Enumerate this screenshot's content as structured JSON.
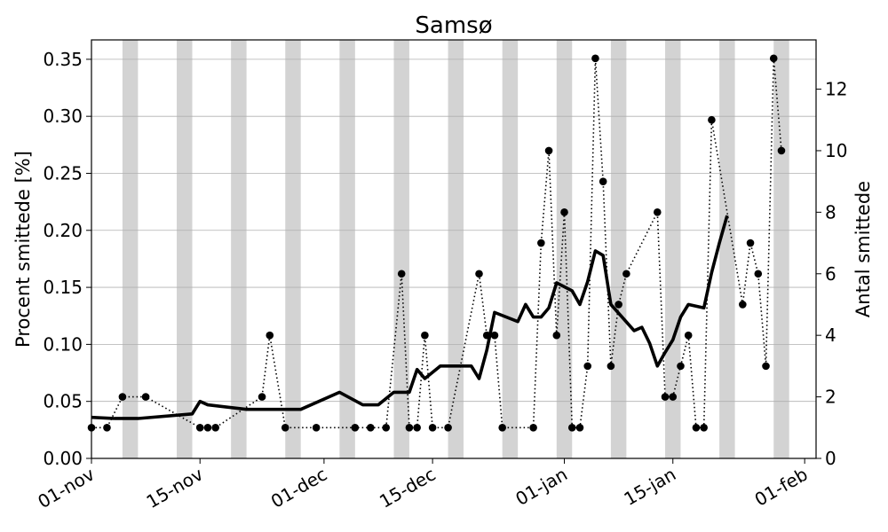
{
  "chart_data": {
    "type": "line",
    "title": "Samsø",
    "ylabel": "Procent smittede [%]",
    "y2label": "Antal smittede",
    "x_ticks": [
      "01-nov",
      "15-nov",
      "01-dec",
      "15-dec",
      "01-jan",
      "15-jan",
      "01-feb"
    ],
    "y_ticks": [
      "0.00",
      "0.05",
      "0.10",
      "0.15",
      "0.20",
      "0.25",
      "0.30",
      "0.35"
    ],
    "y2_ticks": [
      "0",
      "2",
      "4",
      "6",
      "8",
      "10",
      "12"
    ],
    "ylim": [
      0,
      0.367
    ],
    "y2lim": [
      0,
      13.6
    ],
    "x_range": [
      "2020-11-01",
      "2021-01-31"
    ],
    "grid": "horizontal",
    "weekend_shading": true,
    "weekend_start_dates": [
      "2020-11-05",
      "2020-11-12",
      "2020-11-19",
      "2020-11-26",
      "2020-12-03",
      "2020-12-10",
      "2020-12-17",
      "2020-12-24",
      "2020-12-31",
      "2021-01-07",
      "2021-01-14",
      "2021-01-21",
      "2021-01-28"
    ],
    "series": [
      {
        "style": "solid-thick",
        "axis": "left",
        "points": [
          [
            "2020-11-01",
            0.036
          ],
          [
            "2020-11-04",
            0.035
          ],
          [
            "2020-11-07",
            0.035
          ],
          [
            "2020-11-14",
            0.039
          ],
          [
            "2020-11-15",
            0.05
          ],
          [
            "2020-11-16",
            0.047
          ],
          [
            "2020-11-21",
            0.043
          ],
          [
            "2020-11-28",
            0.043
          ],
          [
            "2020-12-03",
            0.058
          ],
          [
            "2020-12-06",
            0.047
          ],
          [
            "2020-12-08",
            0.047
          ],
          [
            "2020-12-10",
            0.058
          ],
          [
            "2020-12-12",
            0.058
          ],
          [
            "2020-12-13",
            0.078
          ],
          [
            "2020-12-14",
            0.07
          ],
          [
            "2020-12-16",
            0.081
          ],
          [
            "2020-12-20",
            0.081
          ],
          [
            "2020-12-21",
            0.07
          ],
          [
            "2020-12-22",
            0.095
          ],
          [
            "2020-12-23",
            0.128
          ],
          [
            "2020-12-26",
            0.12
          ],
          [
            "2020-12-27",
            0.135
          ],
          [
            "2020-12-28",
            0.124
          ],
          [
            "2020-12-29",
            0.124
          ],
          [
            "2020-12-30",
            0.132
          ],
          [
            "2020-12-31",
            0.154
          ],
          [
            "2021-01-02",
            0.147
          ],
          [
            "2021-01-03",
            0.135
          ],
          [
            "2021-01-04",
            0.155
          ],
          [
            "2021-01-05",
            0.182
          ],
          [
            "2021-01-06",
            0.178
          ],
          [
            "2021-01-07",
            0.135
          ],
          [
            "2021-01-10",
            0.112
          ],
          [
            "2021-01-11",
            0.115
          ],
          [
            "2021-01-12",
            0.101
          ],
          [
            "2021-01-13",
            0.081
          ],
          [
            "2021-01-14",
            0.093
          ],
          [
            "2021-01-15",
            0.104
          ],
          [
            "2021-01-16",
            0.124
          ],
          [
            "2021-01-17",
            0.135
          ],
          [
            "2021-01-19",
            0.132
          ],
          [
            "2021-01-20",
            0.163
          ],
          [
            "2021-01-21",
            0.189
          ],
          [
            "2021-01-22",
            0.213
          ]
        ]
      },
      {
        "style": "dotted-markers",
        "axis": "right",
        "points": [
          [
            "2020-11-01",
            1
          ],
          [
            "2020-11-03",
            1
          ],
          [
            "2020-11-05",
            2
          ],
          [
            "2020-11-08",
            2
          ],
          [
            "2020-11-15",
            1
          ],
          [
            "2020-11-16",
            1
          ],
          [
            "2020-11-17",
            1
          ],
          [
            "2020-11-23",
            2
          ],
          [
            "2020-11-24",
            4
          ],
          [
            "2020-11-26",
            1
          ],
          [
            "2020-11-30",
            1
          ],
          [
            "2020-12-05",
            1
          ],
          [
            "2020-12-07",
            1
          ],
          [
            "2020-12-09",
            1
          ],
          [
            "2020-12-11",
            6
          ],
          [
            "2020-12-12",
            1
          ],
          [
            "2020-12-13",
            1
          ],
          [
            "2020-12-14",
            4
          ],
          [
            "2020-12-15",
            1
          ],
          [
            "2020-12-17",
            1
          ],
          [
            "2020-12-21",
            6
          ],
          [
            "2020-12-22",
            4
          ],
          [
            "2020-12-23",
            4
          ],
          [
            "2020-12-24",
            1
          ],
          [
            "2020-12-28",
            1
          ],
          [
            "2020-12-29",
            7
          ],
          [
            "2020-12-30",
            10
          ],
          [
            "2020-12-31",
            4
          ],
          [
            "2021-01-01",
            8
          ],
          [
            "2021-01-02",
            1
          ],
          [
            "2021-01-03",
            1
          ],
          [
            "2021-01-04",
            3
          ],
          [
            "2021-01-05",
            13
          ],
          [
            "2021-01-06",
            9
          ],
          [
            "2021-01-07",
            3
          ],
          [
            "2021-01-08",
            5
          ],
          [
            "2021-01-09",
            6
          ],
          [
            "2021-01-13",
            8
          ],
          [
            "2021-01-14",
            2
          ],
          [
            "2021-01-15",
            2
          ],
          [
            "2021-01-16",
            3
          ],
          [
            "2021-01-17",
            4
          ],
          [
            "2021-01-18",
            1
          ],
          [
            "2021-01-19",
            1
          ],
          [
            "2021-01-20",
            11
          ],
          [
            "2021-01-24",
            5
          ],
          [
            "2021-01-25",
            7
          ],
          [
            "2021-01-26",
            6
          ],
          [
            "2021-01-27",
            3
          ],
          [
            "2021-01-28",
            13
          ],
          [
            "2021-01-29",
            10
          ]
        ]
      }
    ]
  }
}
